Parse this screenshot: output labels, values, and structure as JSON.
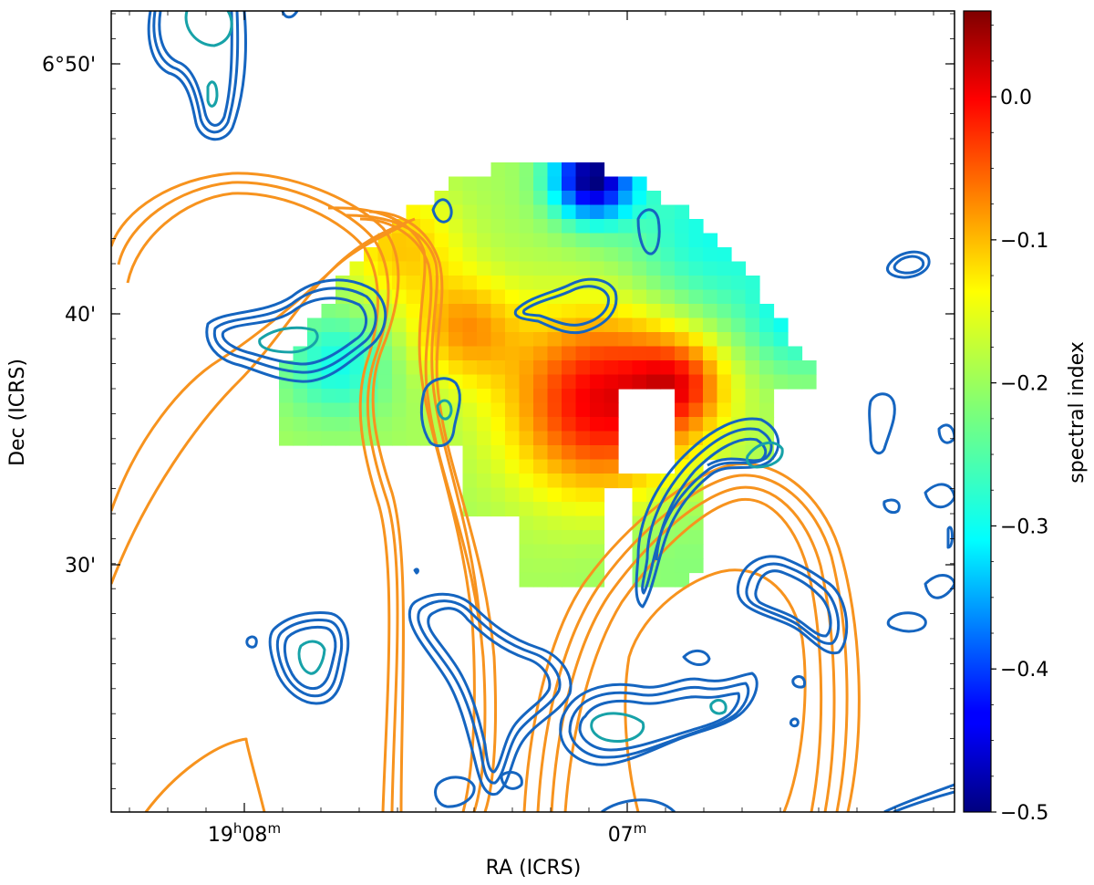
{
  "chart_data": {
    "type": "heatmap",
    "title": "",
    "xlabel": "RA (ICRS)",
    "ylabel": "Dec (ICRS)",
    "x_ticks": [
      "19h08m",
      "07m"
    ],
    "y_ticks": [
      "6°50'",
      "40'",
      "30'"
    ],
    "colorbar": {
      "label": "spectral index",
      "range": [
        -0.5,
        0.06
      ],
      "ticks": [
        "0.0",
        "−0.1",
        "−0.2",
        "−0.3",
        "−0.4",
        "−0.5"
      ],
      "tick_values": [
        0.0,
        -0.1,
        -0.2,
        -0.3,
        -0.4,
        -0.5
      ],
      "colormap": "jet"
    },
    "grid": false,
    "contour_colors": {
      "radio_high_res": "#1565c0",
      "radio_inner": "#17a2a8",
      "low_res": "#f7931e"
    },
    "spectral_index_map_summary": {
      "min": -0.5,
      "max": 0.05,
      "typical": -0.2
    }
  }
}
